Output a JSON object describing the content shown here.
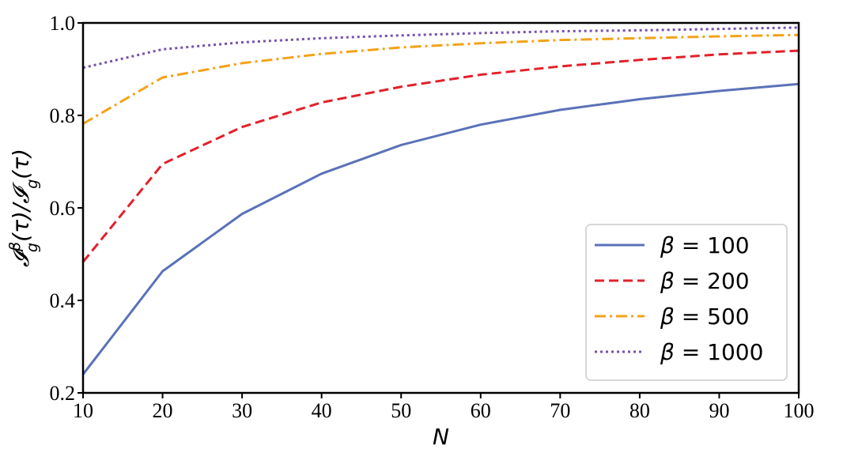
{
  "chart_data": {
    "type": "line",
    "title": "",
    "xlabel": "N",
    "ylabel": "𝓘ᵍᵝ(τ)/𝓘g(τ)",
    "xlim": [
      10,
      100
    ],
    "ylim": [
      0.2,
      1.0
    ],
    "x_ticks": [
      "10",
      "20",
      "30",
      "40",
      "50",
      "60",
      "70",
      "80",
      "90",
      "100"
    ],
    "y_ticks": [
      "0.2",
      "0.4",
      "0.6",
      "0.8",
      "1.0"
    ],
    "grid": false,
    "legend_position": "lower-right",
    "x": [
      10,
      20,
      30,
      40,
      50,
      60,
      70,
      80,
      90,
      100
    ],
    "series": [
      {
        "name": "β = 100",
        "label_symbol": "β",
        "label_rest": " = 100",
        "color": "#5b72b8",
        "style": "solid",
        "values": [
          0.24,
          0.463,
          0.587,
          0.674,
          0.736,
          0.78,
          0.812,
          0.835,
          0.853,
          0.868
        ]
      },
      {
        "name": "β = 200",
        "label_symbol": "β",
        "label_rest": " = 200",
        "color": "#e3202a",
        "style": "dashed",
        "values": [
          0.483,
          0.695,
          0.775,
          0.828,
          0.862,
          0.888,
          0.906,
          0.92,
          0.932,
          0.94
        ]
      },
      {
        "name": "β = 500",
        "label_symbol": "β",
        "label_rest": " = 500",
        "color": "#f4a218",
        "style": "dashdot",
        "values": [
          0.782,
          0.882,
          0.913,
          0.933,
          0.947,
          0.956,
          0.963,
          0.967,
          0.971,
          0.974
        ]
      },
      {
        "name": "β = 1000",
        "label_symbol": "β",
        "label_rest": " = 1000",
        "color": "#7652ab",
        "style": "dotted",
        "values": [
          0.903,
          0.943,
          0.958,
          0.967,
          0.973,
          0.978,
          0.982,
          0.984,
          0.987,
          0.99
        ]
      }
    ]
  }
}
